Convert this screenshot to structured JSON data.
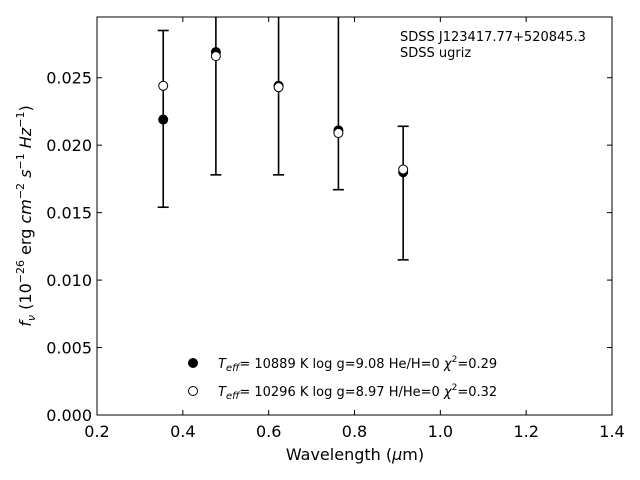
{
  "chart_data": {
    "type": "scatter",
    "annotations": [
      "SDSS J123417.77+520845.3",
      "SDSS ugriz"
    ],
    "xlabel": "Wavelength (μm)",
    "ylabel": "f_ν (10^-26 erg cm^-2 s^-1 Hz^-1)",
    "xlim": [
      0.2,
      1.4
    ],
    "ylim": [
      0.0,
      0.0295
    ],
    "xticks": [
      "0.2",
      "0.4",
      "0.6",
      "0.8",
      "1.0",
      "1.2",
      "1.4"
    ],
    "yticks": [
      "0.000",
      "0.005",
      "0.010",
      "0.015",
      "0.020",
      "0.025"
    ],
    "grid": false,
    "legend_position": "bottom-center",
    "observed": {
      "x": [
        0.3543,
        0.477,
        0.6231,
        0.7625,
        0.9134
      ],
      "y": [
        0.022,
        0.0267,
        0.0243,
        0.0209,
        0.0182
      ],
      "yerr_low": [
        0.0154,
        0.0178,
        0.0178,
        0.0167,
        0.0115
      ],
      "yerr_high": [
        0.0285,
        0.031,
        0.031,
        0.031,
        0.0214
      ]
    },
    "series": [
      {
        "legend_teff": "10889 K",
        "legend_rest": "log g=9.08  He/H=0",
        "legend_chi": "=0.29",
        "marker": "filled",
        "x": [
          0.3543,
          0.477,
          0.6231,
          0.7625,
          0.9134
        ],
        "y": [
          0.0219,
          0.0269,
          0.0244,
          0.0211,
          0.018
        ]
      },
      {
        "legend_teff": "10296 K",
        "legend_rest": "log g=8.97  H/He=0",
        "legend_chi": "=0.32",
        "marker": "open",
        "x": [
          0.3543,
          0.477,
          0.6231,
          0.7625,
          0.9134
        ],
        "y": [
          0.0244,
          0.0266,
          0.0243,
          0.0209,
          0.0182
        ]
      }
    ]
  }
}
